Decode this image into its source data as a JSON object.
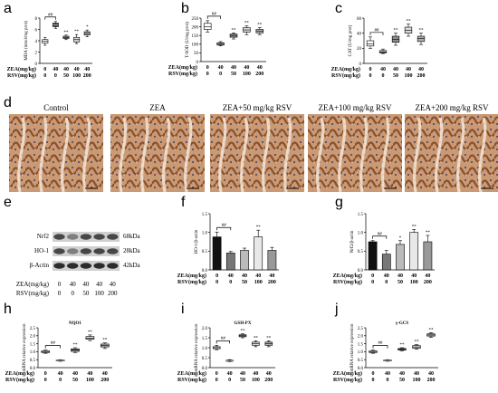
{
  "panel_letters": {
    "a": "a",
    "b": "b",
    "c": "c",
    "d": "d",
    "e": "e",
    "f": "f",
    "g": "g",
    "h": "h",
    "i": "i",
    "j": "j"
  },
  "row_labels": {
    "zea": "ZEA(mg/kg)",
    "rsv": "RSV(mg/kg)"
  },
  "zea_values": [
    "0",
    "40",
    "40",
    "40",
    "40"
  ],
  "rsv_values": [
    "0",
    "0",
    "50",
    "100",
    "200"
  ],
  "micro_titles": [
    "Control",
    "ZEA",
    "ZEA+50 mg/kg RSV",
    "ZEA+100 mg/kg RSV",
    "ZEA+200 mg/kg RSV"
  ],
  "blot": {
    "bands": [
      {
        "name": "Nrf2",
        "size": "68kDa"
      },
      {
        "name": "HO-1",
        "size": "28kDa"
      },
      {
        "name": "β-Actin",
        "size": "42kDa"
      }
    ]
  },
  "colors": {
    "box_fills": [
      "#ffffff",
      "#333333",
      "#8c8c8c",
      "#d9d9d9",
      "#b0b0b0"
    ],
    "bar_fills": [
      "#111111",
      "#777777",
      "#bbbbbb",
      "#e8e8e8",
      "#999999"
    ],
    "tissue": "#b87a4e"
  },
  "chart_data": [
    {
      "id": "a",
      "type": "box",
      "ylabel": "MDA (nmol/mg prot)",
      "ylim": [
        0,
        8
      ],
      "yticks": [
        "0",
        "2",
        "4",
        "6",
        "8"
      ],
      "boxes": [
        {
          "min": 3.2,
          "q1": 3.6,
          "med": 3.9,
          "q3": 4.2,
          "max": 4.6
        },
        {
          "min": 6.2,
          "q1": 6.5,
          "med": 6.8,
          "q3": 7.1,
          "max": 7.4
        },
        {
          "min": 4.2,
          "q1": 4.4,
          "med": 4.6,
          "q3": 4.8,
          "max": 5.0
        },
        {
          "min": 3.5,
          "q1": 3.8,
          "med": 4.2,
          "q3": 4.6,
          "max": 5.1
        },
        {
          "min": 4.7,
          "q1": 5.0,
          "med": 5.3,
          "q3": 5.6,
          "max": 5.9
        }
      ],
      "sig": [
        "",
        "##",
        "**",
        "**",
        "*"
      ]
    },
    {
      "id": "b",
      "type": "box",
      "ylabel": "T-SOD (U/mg prot)",
      "ylim": [
        0,
        250
      ],
      "yticks": [
        "0",
        "50",
        "100",
        "150",
        "200",
        "250"
      ],
      "boxes": [
        {
          "min": 170,
          "q1": 185,
          "med": 200,
          "q3": 220,
          "max": 235
        },
        {
          "min": 90,
          "q1": 95,
          "med": 100,
          "q3": 108,
          "max": 115
        },
        {
          "min": 130,
          "q1": 140,
          "med": 150,
          "q3": 158,
          "max": 165
        },
        {
          "min": 155,
          "q1": 170,
          "med": 182,
          "q3": 195,
          "max": 205
        },
        {
          "min": 155,
          "q1": 165,
          "med": 175,
          "q3": 185,
          "max": 195
        }
      ],
      "sig": [
        "",
        "##",
        "**",
        "**",
        "**"
      ]
    },
    {
      "id": "c",
      "type": "box",
      "ylabel": "CAT (U/mg prot)",
      "ylim": [
        0,
        60
      ],
      "yticks": [
        "0",
        "20",
        "40",
        "60"
      ],
      "boxes": [
        {
          "min": 20,
          "q1": 23,
          "med": 26,
          "q3": 30,
          "max": 35
        },
        {
          "min": 13,
          "q1": 14,
          "med": 16,
          "q3": 17,
          "max": 19
        },
        {
          "min": 24,
          "q1": 28,
          "med": 32,
          "q3": 36,
          "max": 40
        },
        {
          "min": 36,
          "q1": 40,
          "med": 44,
          "q3": 48,
          "max": 52
        },
        {
          "min": 25,
          "q1": 29,
          "med": 33,
          "q3": 36,
          "max": 40
        }
      ],
      "sig": [
        "",
        "##",
        "**",
        "**",
        "**"
      ]
    },
    {
      "id": "f",
      "type": "bar",
      "ylabel": "HO-1/β-actin",
      "ylim": [
        0,
        1.5
      ],
      "yticks": [
        "0.0",
        "0.5",
        "1.0",
        "1.5"
      ],
      "values": [
        0.88,
        0.45,
        0.52,
        0.88,
        0.52
      ],
      "errors": [
        0.13,
        0.04,
        0.06,
        0.18,
        0.08
      ],
      "sig": [
        "",
        "##",
        "",
        "**",
        ""
      ]
    },
    {
      "id": "g",
      "type": "bar",
      "ylabel": "Nrf2/β-actin",
      "ylim": [
        0,
        1.5
      ],
      "yticks": [
        "0.0",
        "0.5",
        "1.0",
        "1.5"
      ],
      "values": [
        0.75,
        0.42,
        0.68,
        1.0,
        0.75
      ],
      "errors": [
        0.03,
        0.1,
        0.1,
        0.08,
        0.17
      ],
      "sig": [
        "",
        "##",
        "*",
        "**",
        "**"
      ]
    },
    {
      "id": "h",
      "type": "box",
      "title": "NQO1",
      "ylabel": "mRNA relative expression",
      "ylim": [
        0,
        2.5
      ],
      "yticks": [
        "0.0",
        "0.5",
        "1.0",
        "1.5",
        "2.0",
        "2.5"
      ],
      "boxes": [
        {
          "min": 0.9,
          "q1": 0.95,
          "med": 1.0,
          "q3": 1.05,
          "max": 1.1
        },
        {
          "min": 0.4,
          "q1": 0.42,
          "med": 0.45,
          "q3": 0.48,
          "max": 0.5
        },
        {
          "min": 0.95,
          "q1": 1.02,
          "med": 1.1,
          "q3": 1.18,
          "max": 1.25
        },
        {
          "min": 1.7,
          "q1": 1.78,
          "med": 1.85,
          "q3": 1.95,
          "max": 2.05
        },
        {
          "min": 1.2,
          "q1": 1.3,
          "med": 1.38,
          "q3": 1.48,
          "max": 1.55
        }
      ],
      "sig": [
        "",
        "##",
        "**",
        "**",
        "**"
      ]
    },
    {
      "id": "i",
      "type": "box",
      "title": "GSH-PX",
      "ylabel": "mRNA relative expression",
      "ylim": [
        0,
        2.0
      ],
      "yticks": [
        "0.0",
        "0.5",
        "1.0",
        "1.5",
        "2.0"
      ],
      "boxes": [
        {
          "min": 0.9,
          "q1": 0.95,
          "med": 1.0,
          "q3": 1.05,
          "max": 1.12
        },
        {
          "min": 0.3,
          "q1": 0.32,
          "med": 0.35,
          "q3": 0.37,
          "max": 0.4
        },
        {
          "min": 1.5,
          "q1": 1.55,
          "med": 1.6,
          "q3": 1.65,
          "max": 1.7
        },
        {
          "min": 1.05,
          "q1": 1.12,
          "med": 1.2,
          "q3": 1.28,
          "max": 1.35
        },
        {
          "min": 1.05,
          "q1": 1.12,
          "med": 1.2,
          "q3": 1.28,
          "max": 1.35
        }
      ],
      "sig": [
        "",
        "##",
        "**",
        "**",
        "**"
      ]
    },
    {
      "id": "j",
      "type": "box",
      "title": "γ-GCS",
      "ylabel": "mRNA relative expression",
      "ylim": [
        0,
        2.5
      ],
      "yticks": [
        "0.0",
        "0.5",
        "1.0",
        "1.5",
        "2.0",
        "2.5"
      ],
      "boxes": [
        {
          "min": 0.9,
          "q1": 0.95,
          "med": 1.0,
          "q3": 1.05,
          "max": 1.1
        },
        {
          "min": 0.4,
          "q1": 0.42,
          "med": 0.45,
          "q3": 0.48,
          "max": 0.5
        },
        {
          "min": 1.05,
          "q1": 1.1,
          "med": 1.15,
          "q3": 1.2,
          "max": 1.25
        },
        {
          "min": 1.15,
          "q1": 1.22,
          "med": 1.3,
          "q3": 1.38,
          "max": 1.45
        },
        {
          "min": 1.9,
          "q1": 1.98,
          "med": 2.05,
          "q3": 2.12,
          "max": 2.2
        }
      ],
      "sig": [
        "",
        "##",
        "**",
        "**",
        "**"
      ]
    }
  ]
}
